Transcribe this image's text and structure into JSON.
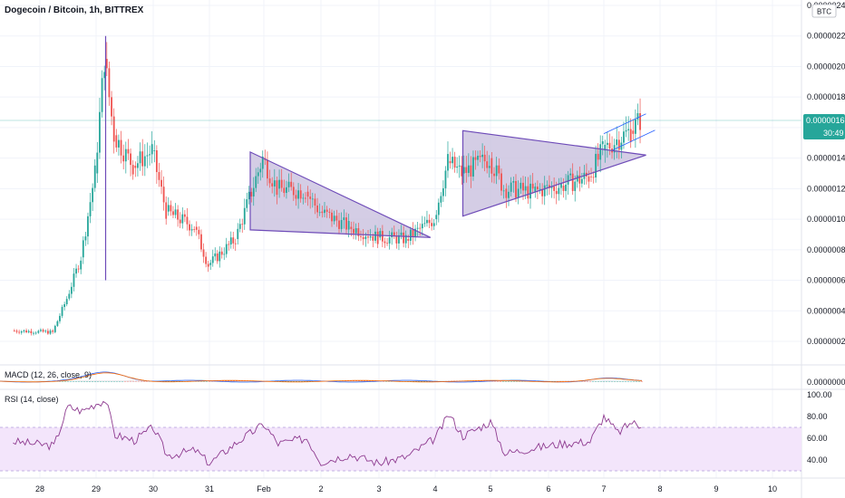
{
  "header": {
    "title": "Dogecoin / Bitcoin, 1h, BITTREX",
    "currency": "BTC"
  },
  "price_tag": {
    "value": "0.00000165",
    "countdown": "30:49"
  },
  "indicators": {
    "macd_label": "MACD (12, 26, close, 9)",
    "macd_axis": "0.00000000",
    "rsi_label": "RSI (14, close)"
  },
  "colors": {
    "up": "#26a69a",
    "down": "#ef5350",
    "big_triangle_fill": "#f7c4c4",
    "small_triangle_fill": "#c9c0df",
    "pattern_line": "#6e4bb8",
    "rsi_line": "#8e3b90",
    "rsi_band": "#f3e5fb",
    "macd_line": "#2962ff",
    "signal_line": "#ff6d00"
  },
  "chart_data": {
    "type": "candlestick",
    "title": "Dogecoin / Bitcoin, 1h, BITTREX",
    "y_unit": "BTC",
    "price_axis_ticks": [
      "0.00000240",
      "0.00000220",
      "0.00000200",
      "0.00000180",
      "0.00000160",
      "0.00000140",
      "0.00000120",
      "0.00000100",
      "0.00000080",
      "0.00000060",
      "0.00000040",
      "0.00000020"
    ],
    "x_ticks": [
      "28",
      "29",
      "30",
      "31",
      "Feb",
      "2",
      "3",
      "4",
      "5",
      "6",
      "7",
      "8",
      "9",
      "10"
    ],
    "last_price": 1.65e-06,
    "ohlc_sampled": [
      {
        "t": "Jan 27 12:00",
        "o": 2.7e-07,
        "c": 2.7e-07
      },
      {
        "t": "Jan 28 06:00",
        "o": 2.7e-07,
        "c": 2.6e-07
      },
      {
        "t": "Jan 28 12:00",
        "o": 2.6e-07,
        "c": 4.8e-07
      },
      {
        "t": "Jan 28 18:00",
        "o": 4.8e-07,
        "c": 7.5e-07
      },
      {
        "t": "Jan 29 00:00",
        "o": 7.5e-07,
        "c": 1.3e-06
      },
      {
        "t": "Jan 29 04:00",
        "o": 1.3e-06,
        "c": 2.05e-06
      },
      {
        "t": "Jan 29 08:00",
        "o": 2.05e-06,
        "c": 1.55e-06
      },
      {
        "t": "Jan 29 16:00",
        "o": 1.55e-06,
        "c": 1.35e-06
      },
      {
        "t": "Jan 30 00:00",
        "o": 1.35e-06,
        "c": 1.45e-06
      },
      {
        "t": "Jan 30 06:00",
        "o": 1.45e-06,
        "c": 1.05e-06
      },
      {
        "t": "Jan 30 18:00",
        "o": 1.05e-06,
        "c": 9.5e-07
      },
      {
        "t": "Jan 31 00:00",
        "o": 9.5e-07,
        "c": 7e-07
      },
      {
        "t": "Jan 31 12:00",
        "o": 7e-07,
        "c": 8.7e-07
      },
      {
        "t": "Feb 1 00:00",
        "o": 8.7e-07,
        "c": 1.4e-06
      },
      {
        "t": "Feb 1 06:00",
        "o": 1.4e-06,
        "c": 1.2e-06
      },
      {
        "t": "Feb 1 18:00",
        "o": 1.2e-06,
        "c": 1.18e-06
      },
      {
        "t": "Feb 2 00:00",
        "o": 1.18e-06,
        "c": 1.05e-06
      },
      {
        "t": "Feb 2 12:00",
        "o": 1.05e-06,
        "c": 9.5e-07
      },
      {
        "t": "Feb 3 00:00",
        "o": 9.5e-07,
        "c": 8.8e-07
      },
      {
        "t": "Feb 3 12:00",
        "o": 8.8e-07,
        "c": 8.7e-07
      },
      {
        "t": "Feb 4 00:00",
        "o": 8.7e-07,
        "c": 1e-06
      },
      {
        "t": "Feb 4 06:00",
        "o": 1e-06,
        "c": 1.38e-06
      },
      {
        "t": "Feb 4 12:00",
        "o": 1.38e-06,
        "c": 1.3e-06
      },
      {
        "t": "Feb 5 00:00",
        "o": 1.3e-06,
        "c": 1.4e-06
      },
      {
        "t": "Feb 5 06:00",
        "o": 1.4e-06,
        "c": 1.2e-06
      },
      {
        "t": "Feb 5 18:00",
        "o": 1.2e-06,
        "c": 1.18e-06
      },
      {
        "t": "Feb 6 06:00",
        "o": 1.18e-06,
        "c": 1.22e-06
      },
      {
        "t": "Feb 6 18:00",
        "o": 1.22e-06,
        "c": 1.28e-06
      },
      {
        "t": "Feb 7 00:00",
        "o": 1.28e-06,
        "c": 1.45e-06
      },
      {
        "t": "Feb 7 06:00",
        "o": 1.45e-06,
        "c": 1.52e-06
      },
      {
        "t": "Feb 7 12:00",
        "o": 1.52e-06,
        "c": 1.58e-06
      },
      {
        "t": "Feb 7 16:00",
        "o": 1.58e-06,
        "c": 1.65e-06
      }
    ],
    "patterns": [
      {
        "name": "large symmetrical triangle",
        "points": [
          [
            "Jan 29 04:00",
            2.2e-06
          ],
          [
            "Jan 29 04:00",
            6e-07
          ],
          [
            "Feb 10 12:00",
            1.18e-06
          ]
        ]
      },
      {
        "name": "descending triangle",
        "points": [
          [
            "Jan 31 18:00",
            1.44e-06
          ],
          [
            "Jan 31 18:00",
            9.3e-07
          ],
          [
            "Feb 3 22:00",
            8.8e-07
          ]
        ]
      },
      {
        "name": "ascending triangle",
        "points": [
          [
            "Feb 4 12:00",
            1.58e-06
          ],
          [
            "Feb 4 12:00",
            1.02e-06
          ],
          [
            "Feb 7 18:00",
            1.42e-06
          ]
        ]
      },
      {
        "name": "rising channel",
        "points": [
          [
            "Feb 7 00:00",
            1.56e-06
          ],
          [
            "Feb 7 18:00",
            1.69e-06
          ]
        ]
      }
    ],
    "macd": {
      "axis_value": 0
    },
    "rsi": {
      "ticks": [
        100,
        80,
        60,
        40
      ],
      "band": [
        30,
        70
      ],
      "sampled": [
        {
          "t": "Jan 27 12:00",
          "v": 57
        },
        {
          "t": "Jan 28 06:00",
          "v": 53
        },
        {
          "t": "Jan 28 12:00",
          "v": 89
        },
        {
          "t": "Jan 28 18:00",
          "v": 85
        },
        {
          "t": "Jan 29 00:00",
          "v": 92
        },
        {
          "t": "Jan 29 04:00",
          "v": 95
        },
        {
          "t": "Jan 29 08:00",
          "v": 63
        },
        {
          "t": "Jan 29 16:00",
          "v": 58
        },
        {
          "t": "Jan 30 00:00",
          "v": 70
        },
        {
          "t": "Jan 30 06:00",
          "v": 44
        },
        {
          "t": "Jan 30 18:00",
          "v": 49
        },
        {
          "t": "Jan 31 00:00",
          "v": 37
        },
        {
          "t": "Jan 31 12:00",
          "v": 56
        },
        {
          "t": "Feb 1 00:00",
          "v": 73
        },
        {
          "t": "Feb 1 06:00",
          "v": 55
        },
        {
          "t": "Feb 1 18:00",
          "v": 60
        },
        {
          "t": "Feb 2 00:00",
          "v": 38
        },
        {
          "t": "Feb 2 12:00",
          "v": 45
        },
        {
          "t": "Feb 3 00:00",
          "v": 37
        },
        {
          "t": "Feb 3 12:00",
          "v": 43
        },
        {
          "t": "Feb 4 00:00",
          "v": 60
        },
        {
          "t": "Feb 4 06:00",
          "v": 82
        },
        {
          "t": "Feb 4 12:00",
          "v": 62
        },
        {
          "t": "Feb 5 00:00",
          "v": 75
        },
        {
          "t": "Feb 5 06:00",
          "v": 46
        },
        {
          "t": "Feb 5 18:00",
          "v": 51
        },
        {
          "t": "Feb 6 06:00",
          "v": 55
        },
        {
          "t": "Feb 6 18:00",
          "v": 57
        },
        {
          "t": "Feb 7 00:00",
          "v": 80
        },
        {
          "t": "Feb 7 06:00",
          "v": 65
        },
        {
          "t": "Feb 7 12:00",
          "v": 75
        },
        {
          "t": "Feb 7 16:00",
          "v": 70
        }
      ]
    }
  }
}
